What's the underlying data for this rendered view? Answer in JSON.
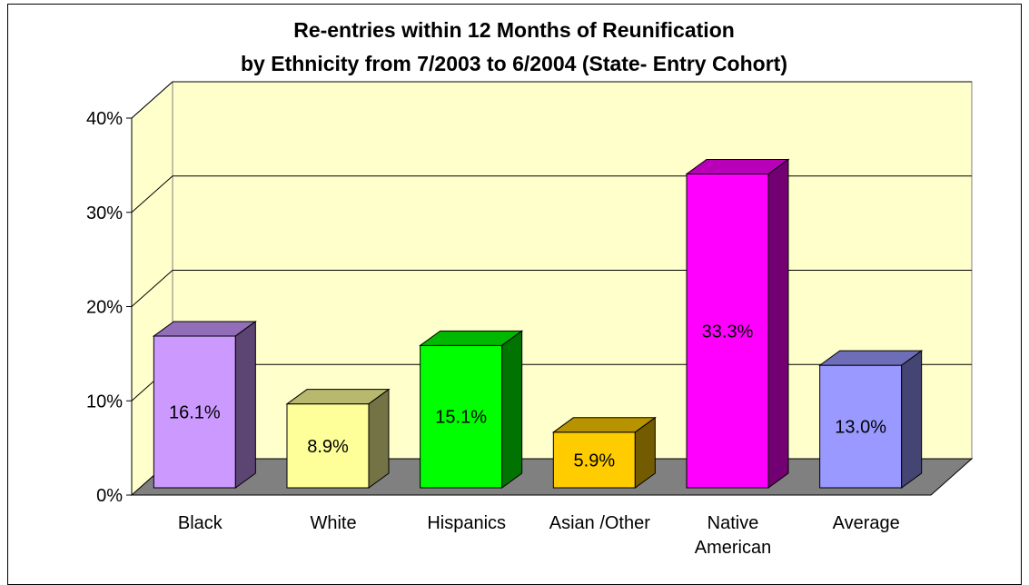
{
  "chart_data": {
    "type": "bar",
    "title": "Re-entries within 12 Months of Reunification",
    "subtitle": "by Ethnicity from 7/2003 to 6/2004 (State- Entry Cohort)",
    "xlabel": "",
    "ylabel": "",
    "ylim": [
      0,
      40
    ],
    "ytick_labels": [
      "0%",
      "10%",
      "20%",
      "30%",
      "40%"
    ],
    "grid": true,
    "three_d": true,
    "categories": [
      "Black",
      "White",
      "Hispanics",
      "Asian /Other",
      "Native American"
    ],
    "category_lines": [
      [
        "Black"
      ],
      [
        "White"
      ],
      [
        "Hispanics"
      ],
      [
        "Asian /Other"
      ],
      [
        "Native",
        "American"
      ]
    ],
    "values": [
      16.1,
      8.9,
      15.1,
      5.9,
      33.3
    ],
    "value_labels": [
      "16.1%",
      "8.9%",
      "15.1%",
      "5.9%",
      "33.3%"
    ],
    "colors": [
      "#CC99FF",
      "#FFFF99",
      "#00FF00",
      "#FFCC00",
      "#FF00FF"
    ],
    "average": {
      "label": "Average",
      "value": 13.0,
      "value_label": "13.0%",
      "color": "#9999FF"
    },
    "wall_color": "#FFFFCC",
    "floor_color": "#808080"
  }
}
